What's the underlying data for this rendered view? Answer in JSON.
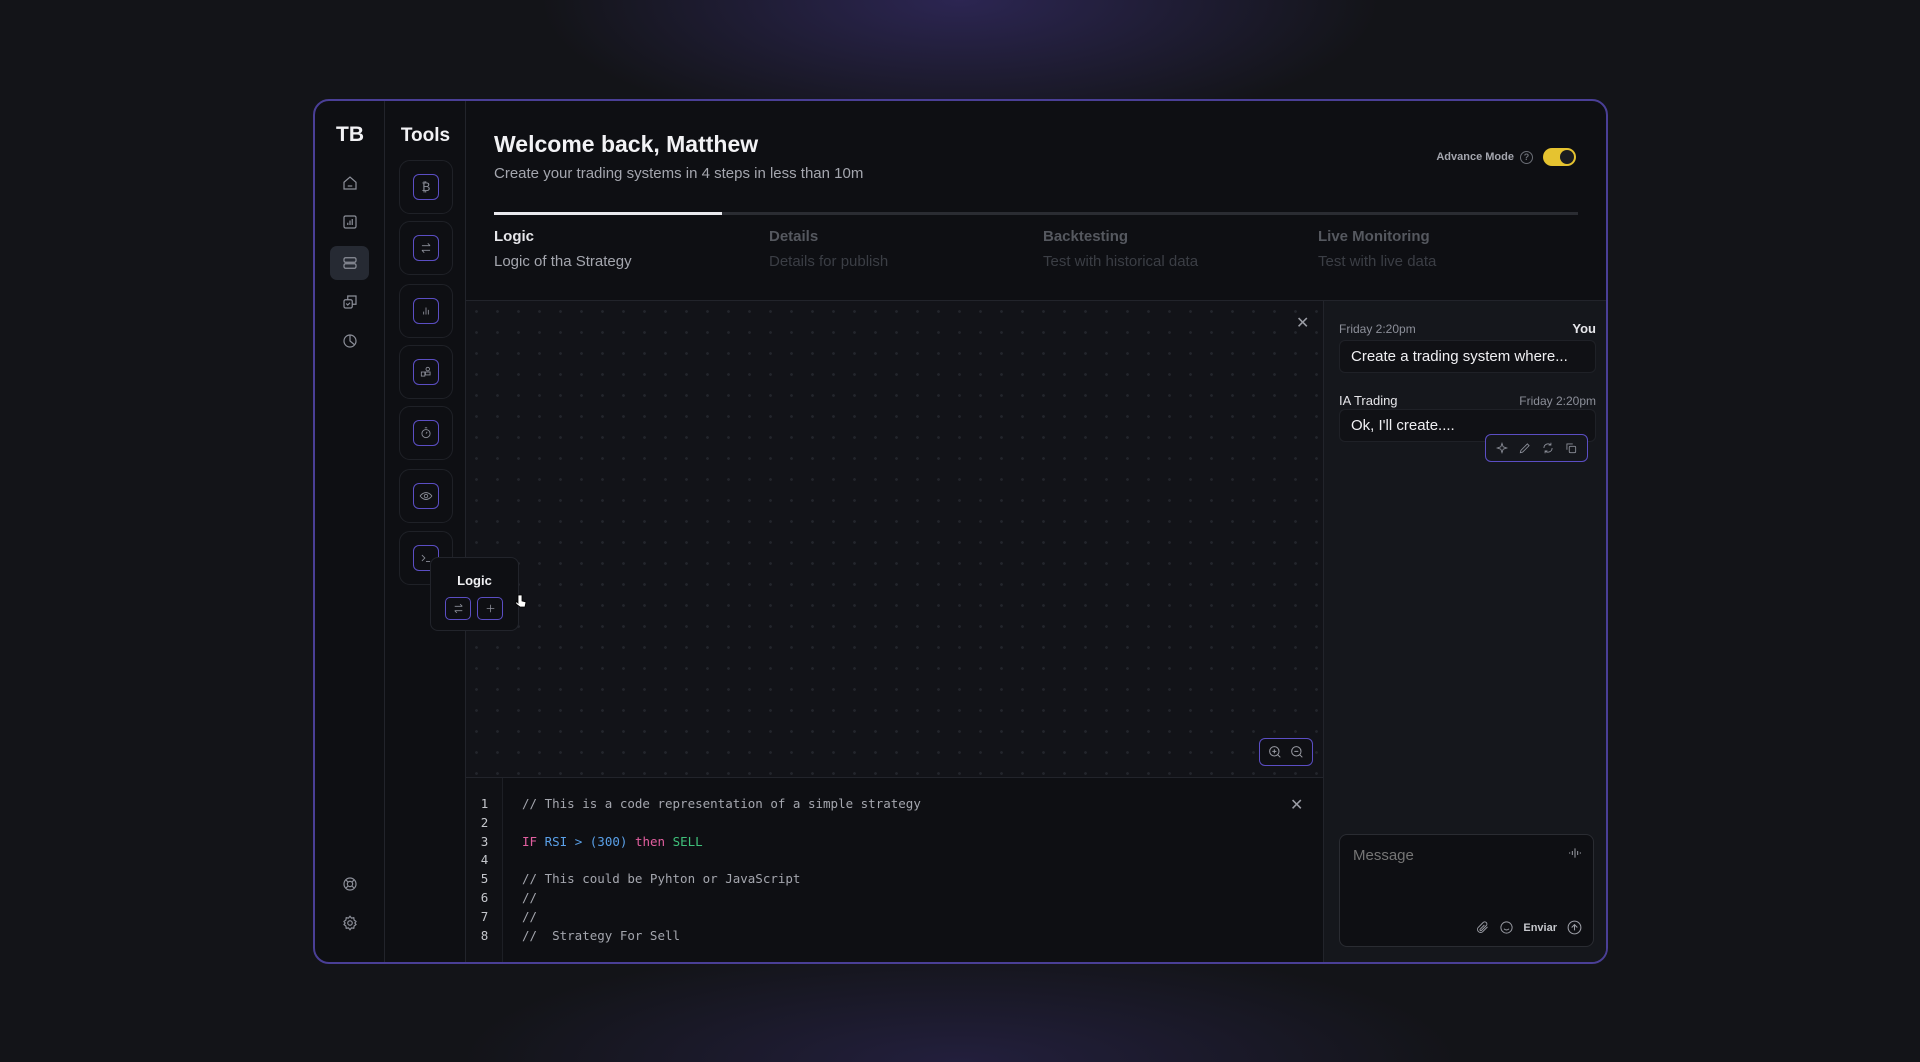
{
  "brand": "TB",
  "tools": {
    "title": "Tools",
    "items": [
      "bitcoin-icon",
      "swap-icon",
      "chart-bars-icon",
      "blocks-icon",
      "timer-icon",
      "eye-icon",
      "terminal-icon"
    ]
  },
  "nav": {
    "items": [
      "home-icon",
      "chart-icon",
      "layers-icon",
      "copy-check-icon",
      "pie-chart-icon"
    ],
    "bottom": [
      "help-lifebuoy-icon",
      "settings-gear-icon"
    ],
    "active": 2
  },
  "header": {
    "title": "Welcome back, Matthew",
    "subtitle": "Create your trading systems in 4 steps in less than 10m",
    "advance_mode_label": "Advance Mode",
    "advance_mode_on": true,
    "accent": "#e5c330"
  },
  "steps": [
    {
      "label": "Logic",
      "sub": "Logic of tha Strategy",
      "active": true
    },
    {
      "label": "Details",
      "sub": "Details for publish"
    },
    {
      "label": "Backtesting",
      "sub": "Test with historical data"
    },
    {
      "label": "Live Monitoring",
      "sub": "Test with live data"
    }
  ],
  "progress_percent": 21,
  "popover": {
    "title": "Logic"
  },
  "code": {
    "line_numbers": [
      "1",
      "2",
      "3",
      "4",
      "5",
      "6",
      "7",
      "8"
    ],
    "line1": "// This is a code representation of a simple strategy",
    "line3": {
      "if": "IF",
      "var": "RSI >",
      "num": "(300)",
      "then": "then",
      "action": "SELL"
    },
    "line5": "// This could be Pyhton or JavaScript",
    "line6": "//",
    "line7": "//",
    "line8": "//  Strategy For Sell"
  },
  "chat": {
    "user_time": "Friday 2:20pm",
    "user_name": "You",
    "user_message": "Create a trading system where...",
    "bot_name": "IA Trading",
    "bot_time": "Friday 2:20pm",
    "bot_message": "Ok, I'll create....",
    "input_placeholder": "Message",
    "send_label": "Enviar"
  },
  "colors": {
    "accent_purple": "#5b4ec4",
    "toggle": "#e5c330"
  }
}
